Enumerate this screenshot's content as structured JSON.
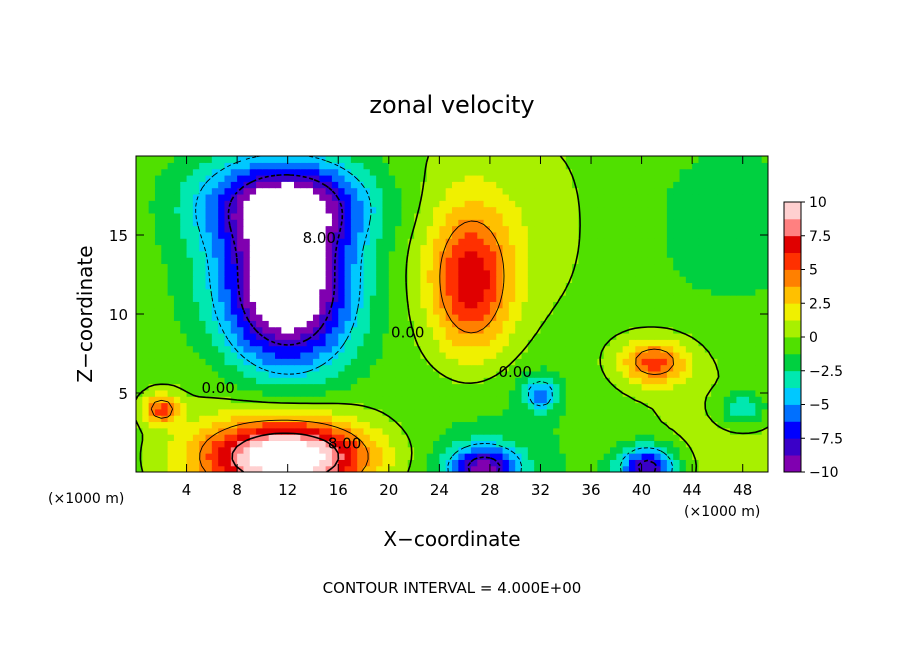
{
  "chart_data": {
    "type": "heatmap",
    "title": "zonal velocity",
    "xlabel": "X−coordinate",
    "ylabel": "Z−coordinate",
    "x_unit_left": "(×1000 m)",
    "x_unit_right": "(×1000 m)",
    "footer": "CONTOUR INTERVAL = 4.000E+00",
    "xlim": [
      0,
      50
    ],
    "ylim": [
      0,
      20
    ],
    "x_ticks": [
      4,
      8,
      12,
      16,
      20,
      24,
      28,
      32,
      36,
      40,
      44,
      48
    ],
    "y_ticks": [
      5,
      10,
      15
    ],
    "colorbar": {
      "range": [
        -10,
        10
      ],
      "ticks": [
        "10",
        "7.5",
        "5",
        "2.5",
        "0",
        "−2.5",
        "−5",
        "−7.5",
        "−10"
      ],
      "colors": [
        "#8000b0",
        "#3a00c8",
        "#0000ff",
        "#0070ff",
        "#00c8ff",
        "#00e8b0",
        "#00d040",
        "#50e000",
        "#a8f000",
        "#f0f000",
        "#ffc000",
        "#ff8000",
        "#ff3000",
        "#e00000",
        "#ff8080",
        "#ffd0d0"
      ]
    },
    "contour_labels": [
      {
        "text": "8.00",
        "x": 14.5,
        "z": 14.5
      },
      {
        "text": "0.00",
        "x": 6.5,
        "z": 5.0
      },
      {
        "text": "0.00",
        "x": 21.5,
        "z": 8.5
      },
      {
        "text": "0.00",
        "x": 30.0,
        "z": 6.0
      },
      {
        "text": "8.00",
        "x": 16.5,
        "z": 1.5
      }
    ],
    "features": [
      {
        "sign": "negative",
        "peak": -12,
        "x": 12,
        "z": 11.5,
        "rx": 5.5,
        "rz": 5.5
      },
      {
        "sign": "negative",
        "peak": -8,
        "x": 12,
        "z": 17,
        "rx": 7,
        "rz": 3
      },
      {
        "sign": "positive",
        "peak": 7,
        "x": 26.5,
        "z": 12,
        "rx": 3.5,
        "rz": 5
      },
      {
        "sign": "positive",
        "peak": 12,
        "x": 12,
        "z": 1,
        "rx": 7,
        "rz": 2.5
      },
      {
        "sign": "positive",
        "peak": 6,
        "x": 41,
        "z": 7,
        "rx": 3,
        "rz": 1.6
      },
      {
        "sign": "negative",
        "peak": -8,
        "x": 27.5,
        "z": 0.3,
        "rx": 3,
        "rz": 1.5
      },
      {
        "sign": "negative",
        "peak": -9,
        "x": 40.5,
        "z": 0.3,
        "rx": 2.5,
        "rz": 1.5
      },
      {
        "sign": "negative",
        "peak": -5,
        "x": 32,
        "z": 5,
        "rx": 1.5,
        "rz": 1.2
      },
      {
        "sign": "negative",
        "peak": -4,
        "x": 48,
        "z": 4,
        "rx": 2,
        "rz": 1.2
      },
      {
        "sign": "positive",
        "peak": 6,
        "x": 2,
        "z": 4,
        "rx": 1.5,
        "rz": 1
      }
    ]
  }
}
